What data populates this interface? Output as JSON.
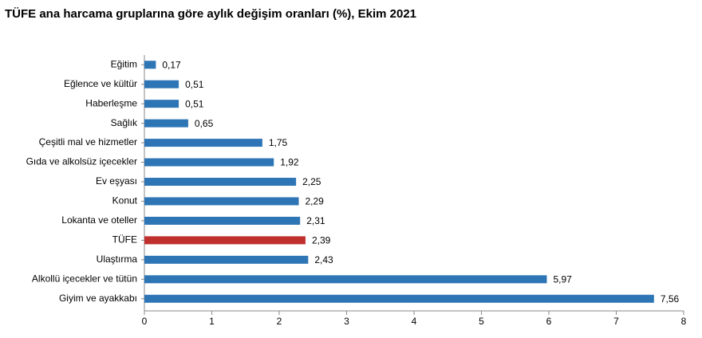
{
  "chart_data": {
    "type": "hbar",
    "title": "TÜFE ana harcama gruplarına göre aylık değişim oranları (%), Ekim 2021",
    "categories": [
      "Eğitim",
      "Eğlence ve kültür",
      "Haberleşme",
      "Sağlık",
      "Çeşitli mal ve hizmetler",
      "Gıda ve alkolsüz içecekler",
      "Ev eşyası",
      "Konut",
      "Lokanta ve oteller",
      "TÜFE",
      "Ulaştırma",
      "Alkollü içecekler ve tütün",
      "Giyim ve ayakkabı"
    ],
    "values": [
      0.17,
      0.51,
      0.51,
      0.65,
      1.75,
      1.92,
      2.25,
      2.29,
      2.31,
      2.39,
      2.43,
      5.97,
      7.56
    ],
    "value_labels": [
      "0,17",
      "0,51",
      "0,51",
      "0,65",
      "1,75",
      "1,92",
      "2,25",
      "2,29",
      "2,31",
      "2,39",
      "2,43",
      "5,97",
      "7,56"
    ],
    "colors": [
      "#2e75b6",
      "#2e75b6",
      "#2e75b6",
      "#2e75b6",
      "#2e75b6",
      "#2e75b6",
      "#2e75b6",
      "#2e75b6",
      "#2e75b6",
      "#c0302f",
      "#2e75b6",
      "#2e75b6",
      "#2e75b6"
    ],
    "xlim": [
      0,
      8
    ],
    "xticks": [
      0,
      1,
      2,
      3,
      4,
      5,
      6,
      7,
      8
    ]
  }
}
